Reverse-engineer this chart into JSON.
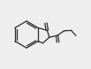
{
  "bg_color": "#eeeeee",
  "line_color": "#2a2a2a",
  "line_width": 0.9,
  "figsize": [
    1.03,
    0.78
  ],
  "dpi": 100,
  "xlim": [
    0,
    10
  ],
  "ylim": [
    0,
    8
  ]
}
